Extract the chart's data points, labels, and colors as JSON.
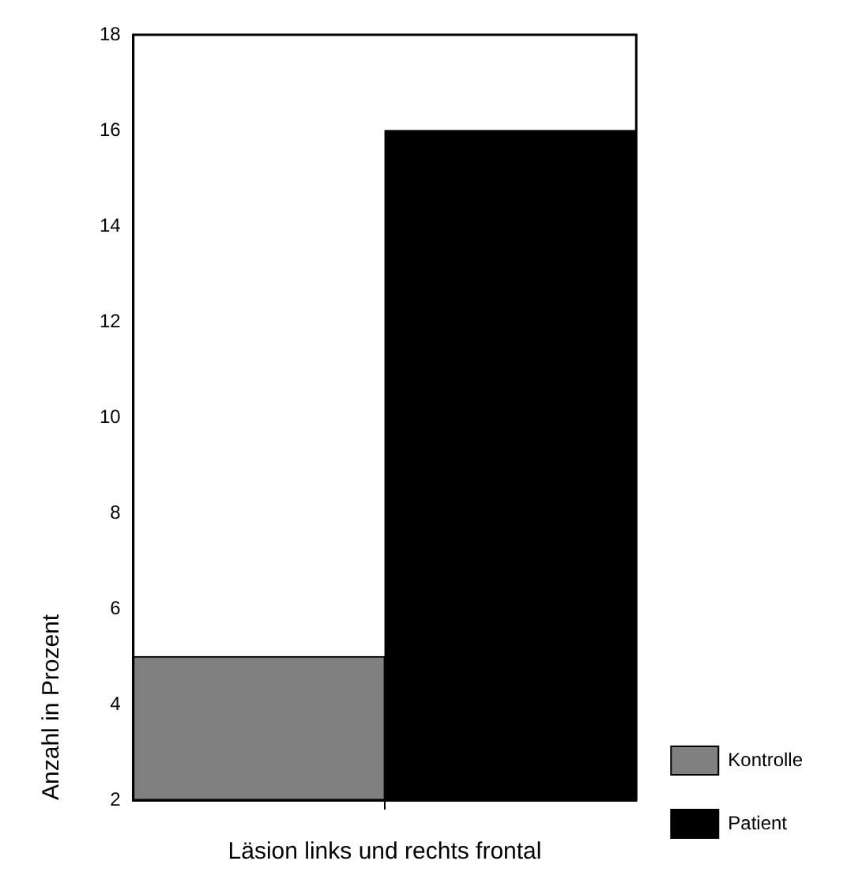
{
  "chart_data": {
    "type": "bar",
    "xlabel": "Läsion links und rechts frontal",
    "ylabel": "Anzahl in Prozent",
    "categories": [
      null
    ],
    "series": [
      {
        "name": "Kontrolle",
        "color": "#808080",
        "values": [
          5
        ]
      },
      {
        "name": "Patient",
        "color": "#000000",
        "values": [
          16
        ]
      }
    ],
    "ylim": [
      2,
      18
    ],
    "yticks": [
      2,
      4,
      6,
      8,
      10,
      12,
      14,
      16,
      18
    ],
    "grid": false,
    "legend": "bottom right",
    "tick_labels": "y"
  }
}
